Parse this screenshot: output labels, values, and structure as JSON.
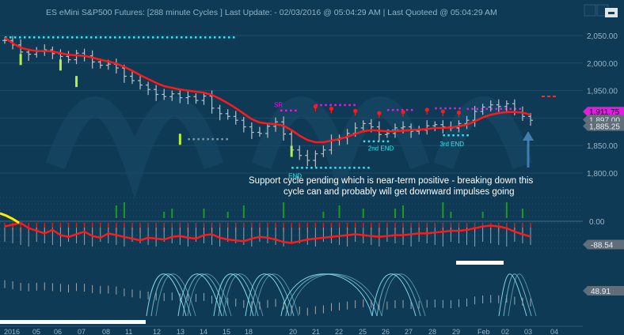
{
  "window": {
    "title": "ES eMini S&P500 Futures: [288 minute Cycles ] Last Update:  - 02/03/2016 @ 05:04:29 AM | Last Quoteed @ 05:04:29 AM",
    "buttons": [
      {
        "name": "window-button-1",
        "label": ""
      },
      {
        "name": "window-button-2",
        "label": ""
      },
      {
        "name": "minimize-icon",
        "label": "⊡"
      }
    ]
  },
  "colors": {
    "background": "#0e3a55",
    "price_bars": "#b8c2c8",
    "moving_average": "#ff1a1a",
    "magenta_markers": "#e01ee0",
    "cyan_markers": "#32e8f0",
    "green_markers": "#b8f040",
    "histogram_up": "#1f9a1f",
    "histogram_down": "#cc2222",
    "oscillator_line": "#ffee00",
    "cycle_lines": "#8fe6f5",
    "price_tag_magenta": "#e01ee0",
    "price_tag_gray": "#5f6e78",
    "arrow": "#3f7fb0"
  },
  "annotation": "Support cycle pending which is near-term positive - breaking down this cycle can and probably will  get downward impulses going",
  "chart_data": [
    {
      "panel": "price",
      "type": "line",
      "title": "ES eMini S&P500 Futures",
      "y_ticks": [
        "2,050.00",
        "2,000.00",
        "1,950.00",
        "1,900.00",
        "1,850.00",
        "1,800.00"
      ],
      "ylim": [
        1790,
        2060
      ],
      "tags": [
        {
          "label": "1,911.75",
          "value": 1911.75,
          "style": "magenta"
        },
        {
          "label": "1,897.00",
          "value": 1897.0,
          "style": "gray"
        },
        {
          "label": "1,885.25",
          "value": 1885.25,
          "style": "gray"
        }
      ],
      "annotations": [
        {
          "label": "SR",
          "x_index": 34,
          "value": 1914
        },
        {
          "label": "END",
          "x_index": 36,
          "value": 1808
        },
        {
          "label": "2nd END",
          "x_index": 46,
          "value": 1858
        },
        {
          "label": "3rd END",
          "x_index": 55,
          "value": 1866
        }
      ],
      "series": [
        {
          "name": "",
          "kind": "close",
          "values": [
            2041,
            2033,
            2020,
            2016,
            2021,
            2024,
            2017,
            2012,
            2006,
            2018,
            2013,
            2002,
            1996,
            1998,
            1991,
            1976,
            1968,
            1960,
            1952,
            1943,
            1939,
            1944,
            1937,
            1939,
            1932,
            1940,
            1918,
            1908,
            1903,
            1896,
            1884,
            1874,
            1872,
            1885,
            1893,
            1871,
            1842,
            1832,
            1823,
            1835,
            1842,
            1860,
            1864,
            1872,
            1882,
            1890,
            1884,
            1870,
            1872,
            1882,
            1884,
            1876,
            1878,
            1886,
            1888,
            1884,
            1882,
            1890,
            1896,
            1912,
            1920,
            1924,
            1921,
            1926,
            1911,
            1903,
            1896
          ]
        },
        {
          "name": "",
          "kind": "moving_average",
          "values": [
            2046,
            2036,
            2028,
            2024,
            2022,
            2022,
            2021,
            2018,
            2015,
            2014,
            2013,
            2010,
            2006,
            2003,
            1999,
            1993,
            1986,
            1978,
            1971,
            1964,
            1958,
            1955,
            1952,
            1950,
            1948,
            1946,
            1942,
            1935,
            1927,
            1918,
            1908,
            1898,
            1892,
            1890,
            1889,
            1886,
            1878,
            1868,
            1860,
            1856,
            1856,
            1859,
            1862,
            1866,
            1871,
            1876,
            1878,
            1877,
            1876,
            1876,
            1877,
            1878,
            1879,
            1880,
            1882,
            1882,
            1883,
            1885,
            1888,
            1894,
            1901,
            1906,
            1909,
            1911,
            1911,
            1910,
            1906
          ]
        }
      ]
    },
    {
      "panel": "histogram",
      "type": "bar",
      "y_ticks": [
        "0.00"
      ],
      "tags": [
        {
          "label": "-88.54",
          "value": -88.54
        }
      ],
      "series": [
        {
          "name": "",
          "values": [
            -30,
            -20,
            -10,
            -40,
            -55,
            -70,
            -50,
            -80,
            -90,
            -75,
            -60,
            -85,
            -95,
            -70,
            -80,
            -90,
            -100,
            -110,
            -95,
            -100,
            -105,
            -90,
            -85,
            -95,
            -100,
            -80,
            -75,
            -95,
            -105,
            -110,
            -115,
            -100,
            -90,
            -95,
            -105,
            -120,
            -125,
            -115,
            -105,
            -100,
            -95,
            -90,
            -85,
            -80,
            -75,
            -80,
            -85,
            -90,
            -85,
            -80,
            -80,
            -75,
            -70,
            -70,
            -65,
            -60,
            -55,
            -55,
            -50,
            -40,
            -30,
            -25,
            -30,
            -40,
            -60,
            -75,
            -88.54
          ]
        }
      ]
    },
    {
      "panel": "cycles",
      "type": "line",
      "tags": [
        {
          "label": "48.91",
          "value": 48.91
        }
      ],
      "x_tick_labels": [
        "2016",
        "05",
        "06",
        "07",
        "08",
        "11",
        "12",
        "13",
        "14",
        "15",
        "18",
        "20",
        "21",
        "22",
        "25",
        "26",
        "27",
        "28",
        "29",
        "Feb",
        "02",
        "03",
        "04"
      ]
    }
  ]
}
